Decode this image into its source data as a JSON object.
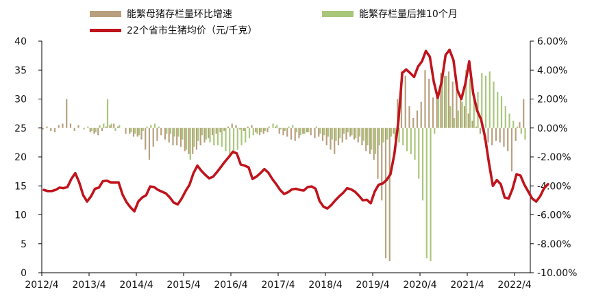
{
  "chart_data": {
    "type": "bar+line",
    "title": "",
    "x_labels": [
      "2012/4",
      "2013/4",
      "2014/4",
      "2015/4",
      "2016/4",
      "2017/4",
      "2018/4",
      "2019/4",
      "2020/4",
      "2021/4",
      "2022/4"
    ],
    "y_left": {
      "range": [
        0,
        40
      ],
      "ticks": [
        "0",
        "5",
        "10",
        "15",
        "20",
        "25",
        "30",
        "35",
        "40"
      ]
    },
    "y_right": {
      "range": [
        -0.1,
        0.06
      ],
      "ticks": [
        "-10.00%",
        "-8.00%",
        "-6.00%",
        "-4.00%",
        "-2.00%",
        "0.00%",
        "2.00%",
        "4.00%",
        "6.00%"
      ]
    },
    "grid": false,
    "legend_position": "top",
    "series": [
      {
        "name": "能繁母猪存栏量环比增速",
        "type": "bar",
        "axis": "right",
        "color": "#b8a07e",
        "monthly_start": "2012-04",
        "values": [
          -0.001,
          0.001,
          -0.002,
          -0.003,
          0.002,
          0.003,
          0.02,
          0.003,
          -0.002,
          0.002,
          0,
          0,
          -0.003,
          -0.004,
          -0.005,
          -0.002,
          0.001,
          0.002,
          0.003,
          0.001,
          0,
          -0.004,
          -0.004,
          -0.006,
          -0.006,
          -0.008,
          -0.015,
          -0.022,
          -0.013,
          -0.009,
          -0.005,
          -0.008,
          -0.01,
          -0.012,
          -0.012,
          -0.013,
          -0.016,
          -0.018,
          -0.018,
          -0.015,
          -0.012,
          -0.01,
          -0.007,
          -0.005,
          -0.004,
          -0.003,
          -0.002,
          0.001,
          0.003,
          0.002,
          -0.001,
          -0.002,
          0.001,
          0.002,
          -0.003,
          -0.005,
          -0.004,
          -0.003,
          0,
          0.001,
          -0.004,
          -0.005,
          -0.006,
          -0.008,
          -0.009,
          -0.007,
          -0.004,
          -0.003,
          -0.005,
          -0.007,
          -0.006,
          -0.009,
          -0.012,
          -0.015,
          -0.018,
          -0.012,
          -0.01,
          -0.008,
          -0.006,
          -0.008,
          -0.01,
          -0.012,
          -0.016,
          -0.018,
          -0.022,
          -0.035,
          -0.05,
          -0.09,
          -0.092,
          -0.004,
          0.02,
          0.039,
          0.036,
          0.015,
          0.007,
          0.012,
          0.018,
          0.04,
          0.034,
          0.021,
          0.025,
          0.038,
          0.036,
          0.039,
          0.032,
          0.025,
          0.022,
          0.015,
          0.01,
          0.005,
          0.001,
          -0.004,
          -0.008,
          -0.01,
          -0.012,
          -0.009,
          -0.01,
          -0.013,
          -0.016,
          -0.03,
          -0.009,
          0.004,
          0.02
        ]
      },
      {
        "name": "能繁存栏量后推10个月",
        "type": "bar",
        "axis": "right",
        "color": "#a9c77a",
        "monthly_start": "2012-04",
        "values": [
          0,
          0,
          0,
          0,
          0,
          0,
          0,
          0,
          0,
          0,
          -0.001,
          0.001,
          -0.002,
          -0.003,
          0.002,
          0.003,
          0.02,
          0.003,
          -0.002,
          0.002,
          0,
          0,
          -0.003,
          -0.004,
          -0.005,
          -0.002,
          0.001,
          0.002,
          0.003,
          0.001,
          0,
          -0.004,
          -0.004,
          -0.006,
          -0.006,
          -0.008,
          -0.015,
          -0.022,
          -0.013,
          -0.009,
          -0.005,
          -0.008,
          -0.01,
          -0.012,
          -0.012,
          -0.013,
          -0.016,
          -0.018,
          -0.018,
          -0.015,
          -0.012,
          -0.01,
          -0.007,
          -0.005,
          -0.004,
          -0.003,
          -0.002,
          0.001,
          0.003,
          0.002,
          -0.001,
          -0.002,
          0.001,
          0.002,
          -0.003,
          -0.005,
          -0.004,
          -0.003,
          0,
          0.001,
          -0.004,
          -0.005,
          -0.006,
          -0.008,
          -0.009,
          -0.007,
          -0.004,
          -0.003,
          -0.005,
          -0.007,
          -0.006,
          -0.009,
          -0.012,
          -0.015,
          -0.018,
          -0.012,
          -0.01,
          -0.008,
          -0.006,
          -0.008,
          -0.01,
          -0.012,
          -0.016,
          -0.018,
          -0.022,
          -0.035,
          -0.05,
          -0.09,
          -0.092,
          -0.004,
          0.02,
          0.039,
          0.036,
          0.015,
          0.007,
          0.012,
          0.018,
          0.04,
          0.034,
          0.021,
          0.025,
          0.038,
          0.036,
          0.039,
          0.032,
          0.025,
          0.022,
          0.015,
          0.01,
          0.005,
          0.001,
          -0.004,
          -0.008
        ]
      },
      {
        "name": "22个省市生猪均价（元/千克）",
        "type": "line",
        "axis": "left",
        "color": "#c0141c",
        "monthly_start": "2012-04",
        "values": [
          14.3,
          14.1,
          14.1,
          14.3,
          14.7,
          14.6,
          14.8,
          16.2,
          17.2,
          15.6,
          13.4,
          12.3,
          13.2,
          14.5,
          14.7,
          15.8,
          15.9,
          15.6,
          15.6,
          15.6,
          13.5,
          12.2,
          11.3,
          10.6,
          12.3,
          13.0,
          13.4,
          14.9,
          14.8,
          14.3,
          14.0,
          13.7,
          13.0,
          12.1,
          11.8,
          12.8,
          14.1,
          15.2,
          17.2,
          18.5,
          17.6,
          16.9,
          16.3,
          16.6,
          17.4,
          18.3,
          19.2,
          20.0,
          20.9,
          20.6,
          18.7,
          18.5,
          18.2,
          16.2,
          16.6,
          17.2,
          17.9,
          17.3,
          16.2,
          15.3,
          14.3,
          13.6,
          13.9,
          14.4,
          14.5,
          14.3,
          14.2,
          14.8,
          14.9,
          14.5,
          12.4,
          11.4,
          11.1,
          11.7,
          12.5,
          13.2,
          13.8,
          14.6,
          14.4,
          14.0,
          13.3,
          12.5,
          12.6,
          12.0,
          14.0,
          15.2,
          15.4,
          16.0,
          17.0,
          20.5,
          26.0,
          34.5,
          35.1,
          34.5,
          33.8,
          35.6,
          36.5,
          38.3,
          37.3,
          33.0,
          30.2,
          33.0,
          37.6,
          38.5,
          36.7,
          31.5,
          30.0,
          32.6,
          36.5,
          31.0,
          28.0,
          26.5,
          23.5,
          19.0,
          15.0,
          16.0,
          15.3,
          13.0,
          12.8,
          14.5,
          17.0,
          16.8,
          15.2,
          14.0,
          12.8,
          12.3,
          13.2,
          14.6,
          15.3
        ]
      }
    ]
  }
}
